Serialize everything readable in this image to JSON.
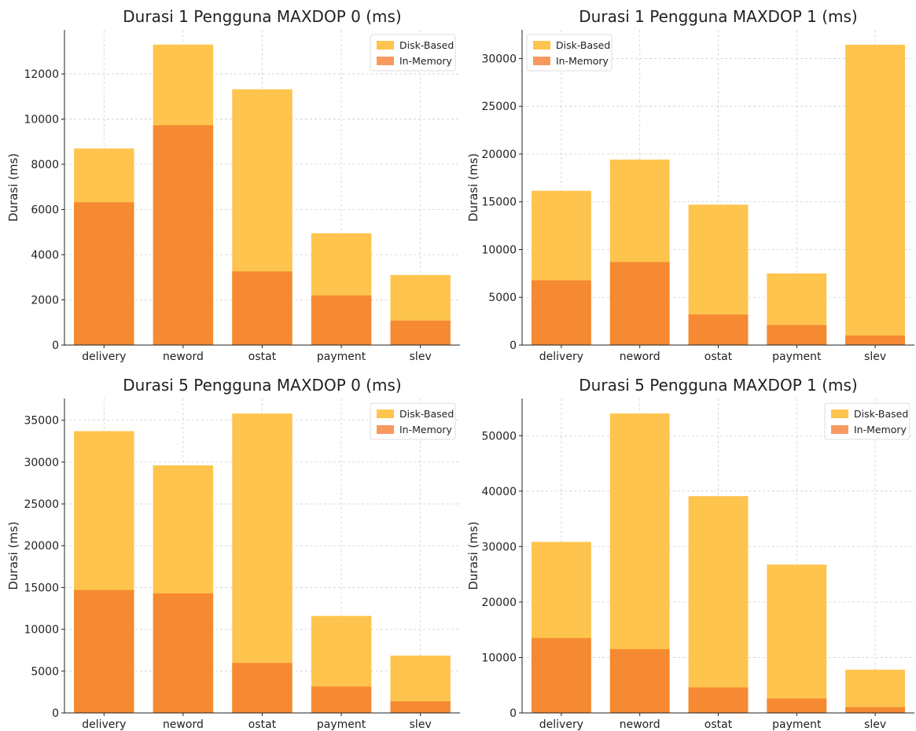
{
  "colors": {
    "disk": "#ffc44d",
    "memory": "#f58a32",
    "memory_legend": "#f7995f"
  },
  "chart_data": [
    {
      "type": "bar",
      "title": "Durasi 1 Pengguna MAXDOP 0 (ms)",
      "xlabel": "",
      "ylabel": "Durasi (ms)",
      "categories": [
        "delivery",
        "neword",
        "ostat",
        "payment",
        "slev"
      ],
      "series": [
        {
          "name": "Disk-Based",
          "values": [
            8700,
            13300,
            11320,
            4950,
            3100
          ]
        },
        {
          "name": "In-Memory",
          "values": [
            6320,
            9730,
            3260,
            2200,
            1080
          ]
        }
      ],
      "yticks": [
        0,
        2000,
        4000,
        6000,
        8000,
        10000,
        12000
      ],
      "ylim": [
        0,
        13950
      ],
      "legend": "top-right",
      "grid": true
    },
    {
      "type": "bar",
      "title": "Durasi 1 Pengguna MAXDOP 1 (ms)",
      "xlabel": "",
      "ylabel": "Durasi (ms)",
      "categories": [
        "delivery",
        "neword",
        "ostat",
        "payment",
        "slev"
      ],
      "series": [
        {
          "name": "Disk-Based",
          "values": [
            16150,
            19420,
            14700,
            7500,
            31450
          ]
        },
        {
          "name": "In-Memory",
          "values": [
            6780,
            8690,
            3200,
            2100,
            1000
          ]
        }
      ],
      "yticks": [
        0,
        5000,
        10000,
        15000,
        20000,
        25000,
        30000
      ],
      "ylim": [
        0,
        33000
      ],
      "legend": "top-left",
      "grid": true
    },
    {
      "type": "bar",
      "title": "Durasi 5 Pengguna MAXDOP 0 (ms)",
      "xlabel": "",
      "ylabel": "Durasi (ms)",
      "categories": [
        "delivery",
        "neword",
        "ostat",
        "payment",
        "slev"
      ],
      "series": [
        {
          "name": "Disk-Based",
          "values": [
            33700,
            29600,
            35800,
            11600,
            6850
          ]
        },
        {
          "name": "In-Memory",
          "values": [
            14700,
            14300,
            5980,
            3150,
            1380
          ]
        }
      ],
      "yticks": [
        0,
        5000,
        10000,
        15000,
        20000,
        25000,
        30000,
        35000
      ],
      "ylim": [
        0,
        37600
      ],
      "legend": "top-right",
      "grid": true
    },
    {
      "type": "bar",
      "title": "Durasi 5 Pengguna MAXDOP 1 (ms)",
      "xlabel": "",
      "ylabel": "Durasi (ms)",
      "categories": [
        "delivery",
        "neword",
        "ostat",
        "payment",
        "slev"
      ],
      "series": [
        {
          "name": "Disk-Based",
          "values": [
            30850,
            54000,
            39100,
            26750,
            7800
          ]
        },
        {
          "name": "In-Memory",
          "values": [
            13500,
            11500,
            4600,
            2600,
            1050
          ]
        }
      ],
      "yticks": [
        0,
        10000,
        20000,
        30000,
        40000,
        50000
      ],
      "ylim": [
        0,
        56700
      ],
      "legend": "top-right",
      "grid": true
    }
  ]
}
